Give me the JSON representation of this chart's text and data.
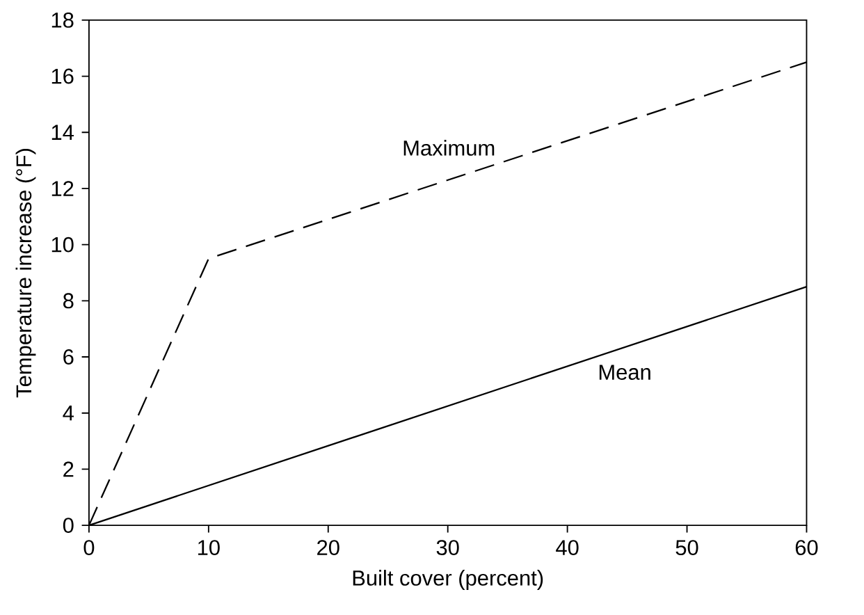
{
  "chart_data": {
    "type": "line",
    "xlabel": "Built cover (percent)",
    "ylabel": "Temperature increase (°F)",
    "xlim": [
      0,
      60
    ],
    "ylim": [
      0,
      18
    ],
    "xticks": [
      0,
      10,
      20,
      30,
      40,
      50,
      60
    ],
    "yticks": [
      0,
      2,
      4,
      6,
      8,
      10,
      12,
      14,
      16,
      18
    ],
    "grid": false,
    "legend": false,
    "marker": "none",
    "series": [
      {
        "name": "Maximum",
        "color": "#000000",
        "line_style": "dashed",
        "x": [
          0,
          10,
          60
        ],
        "values": [
          0,
          9.5,
          16.5
        ]
      },
      {
        "name": "Mean",
        "color": "#000000",
        "line_style": "solid",
        "x": [
          0,
          60
        ],
        "values": [
          0,
          8.5
        ]
      }
    ]
  }
}
